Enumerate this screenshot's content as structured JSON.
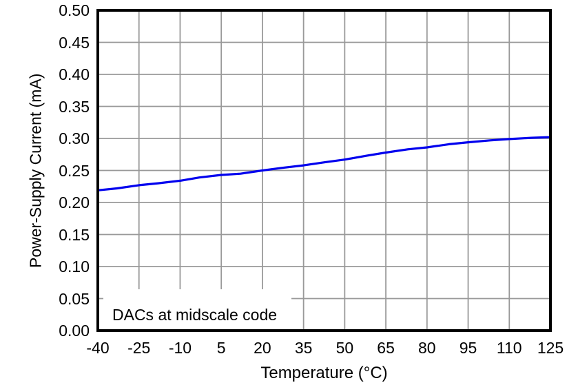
{
  "chart_data": {
    "type": "line",
    "title": "",
    "xlabel": "Temperature (°C)",
    "ylabel": "Power-Supply Current (mA)",
    "annotation": "DACs at midscale code",
    "xlim": [
      -40,
      125
    ],
    "ylim": [
      0.0,
      0.5
    ],
    "x_tick_labels": [
      "-40",
      "-25",
      "-10",
      "5",
      "20",
      "35",
      "50",
      "65",
      "80",
      "95",
      "110",
      "125"
    ],
    "y_tick_labels": [
      "0.00",
      "0.05",
      "0.10",
      "0.15",
      "0.20",
      "0.25",
      "0.30",
      "0.35",
      "0.40",
      "0.45",
      "0.50"
    ],
    "grid": true,
    "legend_position": "none",
    "colors": {
      "line": "#0000EE",
      "gridline": "#999999",
      "frame": "#000000",
      "background": "#FFFFFF"
    },
    "series": [
      {
        "name": "Power-supply current",
        "color": "#0000EE",
        "x": [
          -40,
          -33,
          -25,
          -18,
          -10,
          -3,
          5,
          12,
          20,
          27,
          35,
          43,
          50,
          58,
          65,
          73,
          80,
          88,
          95,
          103,
          110,
          118,
          125
        ],
        "y": [
          0.219,
          0.222,
          0.227,
          0.23,
          0.234,
          0.239,
          0.243,
          0.245,
          0.25,
          0.254,
          0.258,
          0.263,
          0.267,
          0.273,
          0.278,
          0.283,
          0.286,
          0.291,
          0.294,
          0.297,
          0.299,
          0.301,
          0.302
        ]
      }
    ]
  }
}
